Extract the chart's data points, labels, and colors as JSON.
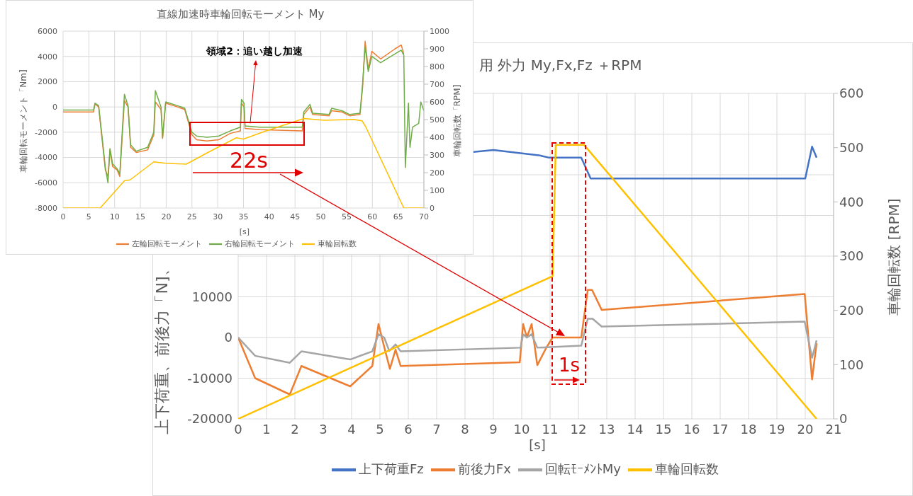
{
  "chart_data": [
    {
      "type": "line",
      "title": "直線加速時車輪回転モーメント My",
      "xlabel": "[s]",
      "ylabel": "車輪回転モーメント「Nm]",
      "y2label": "車輪回転数「RPM]",
      "xlim": [
        0,
        70
      ],
      "xticks": [
        0,
        5,
        10,
        15,
        20,
        25,
        30,
        35,
        40,
        45,
        50,
        55,
        60,
        65,
        70
      ],
      "ylim": [
        -8000,
        6000
      ],
      "yticks": [
        -8000,
        -6000,
        -4000,
        -2000,
        0,
        2000,
        4000,
        6000
      ],
      "y2lim": [
        0,
        1000
      ],
      "y2ticks": [
        0,
        100,
        200,
        300,
        400,
        500,
        600,
        700,
        800,
        900,
        1000
      ],
      "grid": true,
      "legend": "bottom",
      "marker": "none",
      "annotations": [
        {
          "text": "領域2：追い越し加速",
          "x": 36.3,
          "y": -1300
        },
        "22s"
      ],
      "series": [
        {
          "name": "左輪回転モーメント",
          "color": "#ed7d31",
          "x": [
            0,
            5.9,
            6.2,
            6.9,
            7.6,
            8.2,
            8.7,
            9.1,
            9.6,
            10.5,
            11,
            11.9,
            12.6,
            13.1,
            14.2,
            16.4,
            17.6,
            17.9,
            19,
            19.3,
            19.9,
            22.2,
            23.6,
            25,
            25.9,
            27.9,
            30.2,
            32.4,
            34.4,
            34.6,
            35.1,
            35.3,
            38.1,
            46.4,
            46.7,
            47.9,
            48.4,
            51.6,
            52.1,
            54.1,
            55.6,
            57.6,
            58.1,
            58.6,
            59.2,
            59.9,
            61.6,
            64.4,
            65.6,
            66.1
          ],
          "values": [
            -400,
            -400,
            250,
            0,
            -2700,
            -5000,
            -5500,
            -3400,
            -4700,
            -5000,
            -5500,
            500,
            0,
            -3200,
            -3600,
            -3400,
            -2200,
            400,
            -200,
            -2500,
            300,
            0,
            -200,
            -2200,
            -2600,
            -2700,
            -2600,
            -2100,
            -1900,
            300,
            0,
            -1700,
            -1800,
            -1900,
            -600,
            0,
            -600,
            -700,
            -300,
            -400,
            -700,
            -600,
            1500,
            5200,
            3000,
            4400,
            3800,
            4600,
            4900,
            4200
          ]
        },
        {
          "name": "右輪回転モーメント",
          "color": "#70ad47",
          "x": [
            0,
            5.9,
            6.2,
            6.9,
            7.6,
            8.2,
            8.7,
            9.1,
            9.6,
            10.5,
            11,
            11.9,
            12.6,
            13.1,
            14.2,
            16.4,
            17.6,
            17.9,
            19,
            19.3,
            19.9,
            22.2,
            23.6,
            25,
            25.9,
            27.9,
            30.2,
            32.4,
            34.4,
            34.6,
            35.1,
            35.3,
            38.1,
            46.4,
            46.7,
            47.9,
            48.4,
            51.6,
            52.1,
            54.1,
            55.6,
            57.6,
            58.1,
            58.6,
            59.2,
            59.9,
            61.6,
            64.4,
            65.6,
            66.1,
            66.4,
            67,
            67.3,
            67.8,
            69,
            69.4,
            70
          ],
          "values": [
            -250,
            -250,
            300,
            100,
            -2500,
            -4800,
            -6000,
            -3300,
            -4500,
            -4900,
            -5300,
            1000,
            100,
            -3000,
            -3500,
            -3200,
            -2000,
            1300,
            0,
            -2400,
            400,
            100,
            -100,
            -2000,
            -2300,
            -2400,
            -2300,
            -1900,
            -1600,
            600,
            300,
            -1500,
            -1600,
            -1600,
            -400,
            200,
            -500,
            -600,
            -100,
            -300,
            -600,
            -500,
            1800,
            4800,
            2800,
            4000,
            3500,
            4200,
            4500,
            4100,
            -4800,
            300,
            -3200,
            -1600,
            -1300,
            400,
            -300
          ]
        },
        {
          "name": "車輪回転数",
          "color": "#ffc000",
          "axis": "y2",
          "x": [
            0,
            7.2,
            11.9,
            13,
            17.6,
            19.9,
            23.9,
            27.9,
            33.6,
            35,
            39.3,
            46.7,
            50.7,
            56.4,
            58,
            58.7,
            66.1,
            70
          ],
          "values": [
            0,
            0,
            154,
            159,
            261,
            253,
            248,
            311,
            397,
            390,
            435,
            506,
            496,
            501,
            493,
            460,
            0,
            0
          ]
        }
      ]
    },
    {
      "type": "line",
      "title": "用 外力 My,Fx,Fz ＋RPM",
      "xlabel": "[s]",
      "ylabel": "上下荷重、前後力「N]、",
      "y2label": "車輪回転数 [RPM]",
      "xlim": [
        0,
        21
      ],
      "xticks": [
        0,
        1,
        2,
        3,
        4,
        5,
        6,
        7,
        8,
        9,
        10,
        11,
        12,
        13,
        14,
        15,
        16,
        17,
        18,
        19,
        20,
        21
      ],
      "ylim": [
        -20000,
        60000
      ],
      "yticks": [
        -20000,
        -10000,
        0,
        10000,
        {
          "value": 20000,
          "label": null
        },
        {
          "value": 30000,
          "label": null
        },
        {
          "value": 40000,
          "label": null
        },
        {
          "value": 50000,
          "label": null
        },
        {
          "value": 60000,
          "label": null
        }
      ],
      "y2lim": [
        0,
        600
      ],
      "y2ticks": [
        0,
        100,
        200,
        300,
        400,
        500,
        600
      ],
      "grid": true,
      "legend": "bottom",
      "marker": "none",
      "annotations": [
        "1s"
      ],
      "series": [
        {
          "name": "上下荷重Fz",
          "color": "#4472c4",
          "x": [
            8.3,
            9,
            10.6,
            10.97,
            12.1,
            12.43,
            20,
            20.24,
            20.4
          ],
          "values": [
            45600,
            46100,
            44800,
            44200,
            44200,
            39100,
            39100,
            46900,
            44200
          ]
        },
        {
          "name": "前後力Fx",
          "color": "#ed7d31",
          "x": [
            0,
            0.6,
            1.82,
            2.23,
            3.95,
            4.73,
            4.95,
            5.15,
            5.35,
            5.55,
            5.73,
            9.93,
            10.05,
            10.18,
            10.35,
            10.55,
            10.86,
            11.09,
            12.1,
            12.33,
            12.48,
            12.82,
            19.98,
            20.24,
            20.4
          ],
          "values": [
            0,
            -10000,
            -14000,
            -7000,
            -12000,
            -7000,
            3300,
            -2300,
            -7700,
            -3000,
            -7000,
            -6100,
            3300,
            0,
            3300,
            -6800,
            -2600,
            0,
            0,
            11700,
            11700,
            6800,
            10700,
            -10300,
            -1400
          ]
        },
        {
          "name": "回転ﾓｰﾒﾝﾄMy",
          "color": "#a5a5a5",
          "x": [
            0,
            0.6,
            1.82,
            2.23,
            3.95,
            4.73,
            4.95,
            5.15,
            5.33,
            5.55,
            5.73,
            9.96,
            10.05,
            10.18,
            10.35,
            10.55,
            12.1,
            12.33,
            12.5,
            12.82,
            19.98,
            20.24,
            20.4
          ],
          "values": [
            0,
            -4500,
            -6200,
            -3400,
            -5400,
            -3400,
            800,
            0,
            -3300,
            -1700,
            -3400,
            -2500,
            800,
            0,
            800,
            -2500,
            -2000,
            4600,
            4600,
            2700,
            3900,
            -5000,
            -700
          ]
        },
        {
          "name": "車輪回転数",
          "color": "#ffc000",
          "axis": "y2",
          "x": [
            0,
            11.09,
            11.2,
            12.2,
            20.4
          ],
          "values": [
            0,
            263,
            505,
            505,
            0
          ]
        }
      ]
    }
  ]
}
